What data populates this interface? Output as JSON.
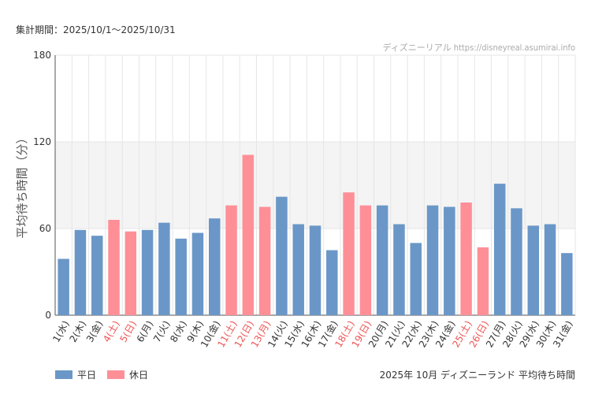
{
  "header": {
    "period": "集計期間：2025/10/1〜2025/10/31",
    "credit": "ディズニーリアル https://disneyreal.asumirai.info"
  },
  "footer": {
    "title": "2025年 10月 ディズニーランド 平均待ち時間"
  },
  "colors": {
    "weekday": "#6a97c7",
    "holiday": "#ff8f97",
    "holiday_label": "#ee5555",
    "band": "#f4f4f4",
    "grid": "#e6e6e6"
  },
  "chart_data": {
    "type": "bar",
    "ylabel": "平均待ち時間（分）",
    "xlabel": "",
    "ylim": [
      0,
      180
    ],
    "yticks": [
      0,
      60,
      120,
      180
    ],
    "highlight_band": [
      60,
      120
    ],
    "legend": [
      {
        "key": "weekday",
        "label": "平日"
      },
      {
        "key": "holiday",
        "label": "休日"
      }
    ],
    "categories": [
      "1(水)",
      "2(木)",
      "3(金)",
      "4(土)",
      "5(日)",
      "6(月)",
      "7(火)",
      "8(水)",
      "9(木)",
      "10(金)",
      "11(土)",
      "12(日)",
      "13(月)",
      "14(火)",
      "15(水)",
      "16(木)",
      "17(金)",
      "18(土)",
      "19(日)",
      "20(月)",
      "21(火)",
      "22(水)",
      "23(木)",
      "24(金)",
      "25(土)",
      "26(日)",
      "27(月)",
      "28(火)",
      "29(水)",
      "30(木)",
      "31(金)"
    ],
    "values": [
      39,
      59,
      55,
      66,
      58,
      59,
      64,
      53,
      57,
      67,
      76,
      111,
      75,
      82,
      63,
      62,
      45,
      85,
      76,
      76,
      63,
      50,
      76,
      75,
      78,
      47,
      91,
      74,
      62,
      63,
      43
    ],
    "day_type": [
      "weekday",
      "weekday",
      "weekday",
      "holiday",
      "holiday",
      "weekday",
      "weekday",
      "weekday",
      "weekday",
      "weekday",
      "holiday",
      "holiday",
      "holiday",
      "weekday",
      "weekday",
      "weekday",
      "weekday",
      "holiday",
      "holiday",
      "weekday",
      "weekday",
      "weekday",
      "weekday",
      "weekday",
      "holiday",
      "holiday",
      "weekday",
      "weekday",
      "weekday",
      "weekday",
      "weekday"
    ]
  }
}
